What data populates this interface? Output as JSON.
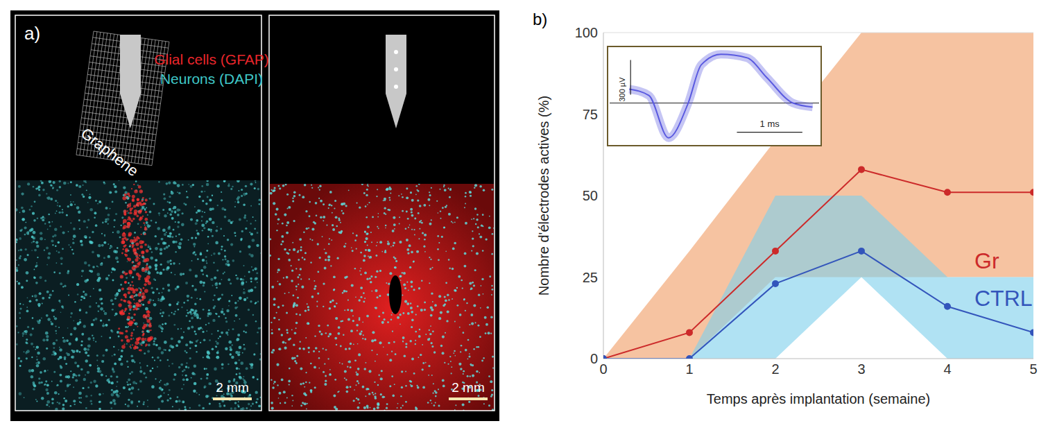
{
  "panel_a": {
    "panel_label": "a)",
    "stain_labels": [
      {
        "text": "Glial cells (GFAP)",
        "color": "#e8262b"
      },
      {
        "text": "Neurons (DAPI)",
        "color": "#3fc8c8"
      }
    ],
    "probe_label": "Graphene",
    "scale_bars": [
      "2 mm",
      "2 mm"
    ]
  },
  "chart_data": [
    {
      "type": "line",
      "panel_label": "b)",
      "x_label": "Temps après implantation (semaine)",
      "y_label": "Nombre d'électrodes actives (%)",
      "x": [
        0,
        1,
        2,
        3,
        4,
        5
      ],
      "xlim": [
        0,
        5
      ],
      "xticks": [
        0,
        1,
        2,
        3,
        4,
        5
      ],
      "ylim": [
        0,
        100
      ],
      "yticks": [
        0,
        25,
        50,
        75,
        100
      ],
      "grid": false,
      "marker": "o",
      "series": [
        {
          "name": "Gr",
          "color": "#cc2a2a",
          "values": [
            0,
            8,
            33,
            58,
            51,
            51
          ],
          "lower": [
            0,
            0,
            25,
            25,
            25,
            25
          ],
          "upper": [
            0,
            33,
            67,
            100,
            100,
            100
          ]
        },
        {
          "name": "CTRL",
          "color": "#3355bb",
          "values": [
            0,
            0,
            23,
            33,
            16,
            8
          ],
          "lower": [
            0,
            0,
            0,
            25,
            0,
            0
          ],
          "upper": [
            0,
            0,
            50,
            50,
            25,
            25
          ]
        }
      ]
    },
    {
      "type": "line",
      "x": [
        0,
        0.3,
        0.6,
        0.9,
        1.1,
        1.4,
        1.8,
        2.1,
        2.5,
        2.8
      ],
      "values": [
        120,
        65,
        -300,
        0,
        330,
        420,
        390,
        220,
        0,
        -35
      ],
      "color": "#5a5ae0",
      "xlim": [
        -0.3,
        2.9
      ],
      "ylim": [
        -350,
        470
      ],
      "tick_labels": false,
      "baseline": 0,
      "scale_bars": [
        {
          "label": "300 µV",
          "value": 300
        },
        {
          "label": "1 ms",
          "value": 1
        }
      ]
    }
  ]
}
